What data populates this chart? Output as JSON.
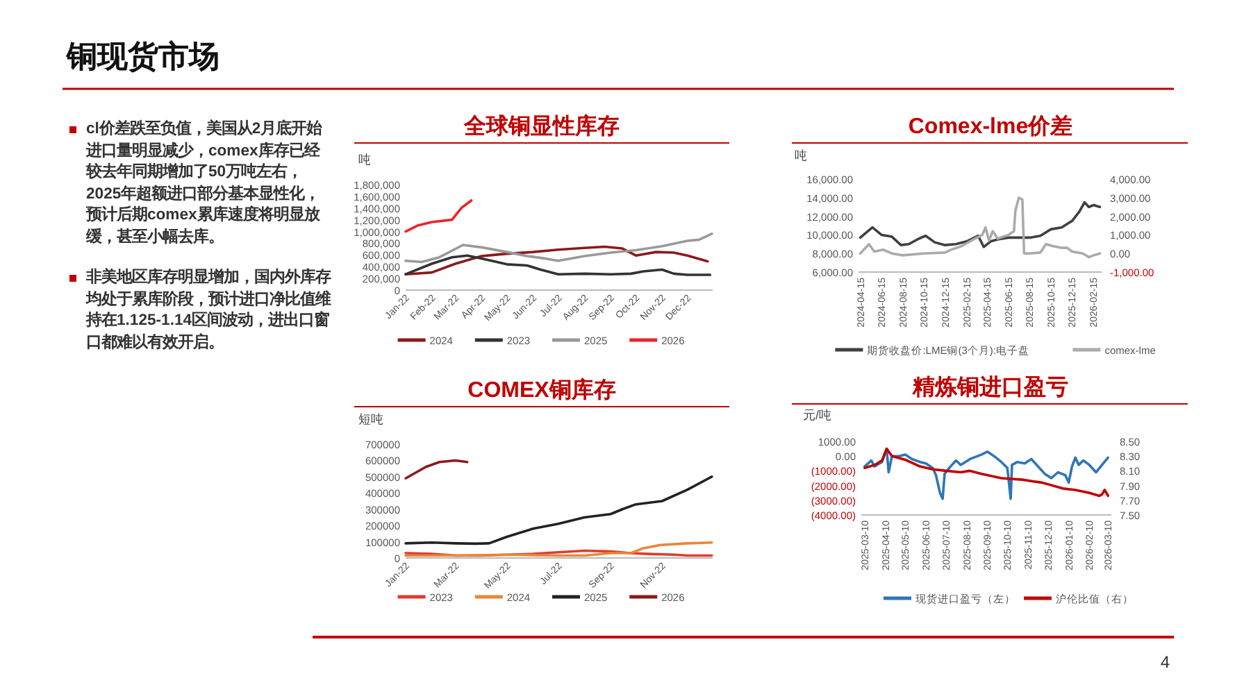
{
  "chart_data": [
    {
      "type": "other",
      "title": "铜现货市场",
      "annotations": [
        "cl价差跌至负值，美国从2月底开始进口量明显减少，comex库存已经较去年同期增加了50万吨左右，2025年超额进口部分基本显性化，预计后期comex累库速度将明显放缓，甚至小幅去库。",
        "非美地区库存明显增加，国内外库存均处于累库阶段，预计进口净比值维持在1.125-1.14区间波动，进出口窗口都难以有效开启。"
      ]
    },
    {
      "type": "line",
      "title": "全球铜显性库存",
      "ylabel": "吨",
      "legend": "bottom",
      "xlim": [
        "2022-01-01",
        "2022-12-31"
      ],
      "xticks": [
        {
          "value": "2022-01-01",
          "label": "Jan-22"
        },
        {
          "value": "2022-02-01",
          "label": "Feb-22"
        },
        {
          "value": "2022-03-01",
          "label": "Mar-22"
        },
        {
          "value": "2022-04-01",
          "label": "Apr-22"
        },
        {
          "value": "2022-05-01",
          "label": "May-22"
        },
        {
          "value": "2022-06-01",
          "label": "Jun-22"
        },
        {
          "value": "2022-07-01",
          "label": "Jul-22"
        },
        {
          "value": "2022-08-01",
          "label": "Aug-22"
        },
        {
          "value": "2022-09-01",
          "label": "Sep-22"
        },
        {
          "value": "2022-10-01",
          "label": "Oct-22"
        },
        {
          "value": "2022-11-01",
          "label": "Nov-22"
        },
        {
          "value": "2022-12-01",
          "label": "Dec-22"
        }
      ],
      "ylim": [
        0,
        1800000
      ],
      "yticks": [
        0,
        {
          "value": 200000,
          "label": "200,000"
        },
        {
          "value": 400000,
          "label": "400,000"
        },
        {
          "value": 600000,
          "label": "600,000"
        },
        {
          "value": 800000,
          "label": "800,000"
        },
        {
          "value": 1000000,
          "label": "1,000,000"
        },
        {
          "value": 1200000,
          "label": "1,200,000"
        },
        {
          "value": 1400000,
          "label": "1,400,000"
        },
        {
          "value": 1600000,
          "label": "1,600,000"
        },
        {
          "value": 1800000,
          "label": "1,800,000"
        }
      ],
      "series": [
        {
          "name": "2024",
          "color": "#8b1a1a",
          "x": [
            "2022-01-01",
            "2022-02-01",
            "2022-03-01",
            "2022-04-01",
            "2022-04-15",
            "2022-05-01",
            "2022-06-01",
            "2022-07-01",
            "2022-08-01",
            "2022-08-25",
            "2022-09-15",
            "2022-10-01",
            "2022-10-25",
            "2022-11-15",
            "2022-12-01",
            "2022-12-25"
          ],
          "values": [
            270000,
            300000,
            450000,
            580000,
            600000,
            620000,
            650000,
            690000,
            720000,
            740000,
            710000,
            590000,
            650000,
            640000,
            590000,
            490000
          ]
        },
        {
          "name": "2023",
          "color": "#333333",
          "x": [
            "2022-01-01",
            "2022-02-01",
            "2022-02-25",
            "2022-03-15",
            "2022-04-01",
            "2022-05-01",
            "2022-05-25",
            "2022-06-10",
            "2022-07-01",
            "2022-08-01",
            "2022-09-01",
            "2022-09-25",
            "2022-10-10",
            "2022-11-01",
            "2022-11-15",
            "2022-12-01",
            "2022-12-28"
          ],
          "values": [
            270000,
            450000,
            560000,
            590000,
            540000,
            440000,
            420000,
            350000,
            270000,
            280000,
            270000,
            280000,
            320000,
            350000,
            280000,
            260000,
            260000
          ]
        },
        {
          "name": "2025",
          "color": "#999999",
          "x": [
            "2022-01-01",
            "2022-01-20",
            "2022-02-10",
            "2022-03-10",
            "2022-04-01",
            "2022-05-01",
            "2022-05-25",
            "2022-06-15",
            "2022-07-01",
            "2022-08-01",
            "2022-09-01",
            "2022-10-01",
            "2022-11-01",
            "2022-12-01",
            "2022-12-15",
            "2022-12-30"
          ],
          "values": [
            500000,
            480000,
            560000,
            770000,
            730000,
            650000,
            580000,
            540000,
            500000,
            580000,
            640000,
            680000,
            750000,
            840000,
            860000,
            960000
          ]
        },
        {
          "name": "2026",
          "color": "#e8262a",
          "x": [
            "2022-01-01",
            "2022-01-15",
            "2022-02-01",
            "2022-02-25",
            "2022-03-08",
            "2022-03-20"
          ],
          "values": [
            1000000,
            1100000,
            1160000,
            1200000,
            1400000,
            1530000
          ]
        }
      ]
    },
    {
      "type": "line",
      "title": "Comex-lme价差",
      "ylabel": "吨",
      "legend": "bottom",
      "xlim": [
        "2024-04-10",
        "2026-03-10"
      ],
      "xticks": [
        "2024-04-15",
        "2024-06-15",
        "2024-08-15",
        "2024-10-15",
        "2024-12-15",
        "2025-02-15",
        "2025-04-15",
        "2025-06-15",
        "2025-08-15",
        "2025-10-15",
        "2025-12-15",
        "2026-02-15"
      ],
      "ylim": [
        6000,
        16000
      ],
      "yticks": [
        {
          "value": 6000,
          "label": "6,000.00"
        },
        {
          "value": 8000,
          "label": "8,000.00"
        },
        {
          "value": 10000,
          "label": "10,000.00"
        },
        {
          "value": 12000,
          "label": "12,000.00"
        },
        {
          "value": 14000,
          "label": "14,000.00"
        },
        {
          "value": 16000,
          "label": "16,000.00"
        }
      ],
      "y2lim": [
        -1000,
        4000
      ],
      "y2ticks": [
        {
          "value": -1000,
          "label": "-1,000.00"
        },
        {
          "value": 0,
          "label": "0.00"
        },
        {
          "value": 1000,
          "label": "1,000.00"
        },
        {
          "value": 2000,
          "label": "2,000.00"
        },
        {
          "value": 3000,
          "label": "3,000.00"
        },
        {
          "value": 4000,
          "label": "4,000.00"
        }
      ],
      "series": [
        {
          "name": "期货收盘价:LME铜(3个月):电子盘",
          "color": "#404040",
          "x": [
            "2024-04-15",
            "2024-05-20",
            "2024-06-15",
            "2024-07-15",
            "2024-08-10",
            "2024-09-01",
            "2024-10-01",
            "2024-10-20",
            "2024-11-15",
            "2024-12-15",
            "2025-01-15",
            "2025-02-15",
            "2025-03-20",
            "2025-04-05",
            "2025-04-25",
            "2025-05-15",
            "2025-06-15",
            "2025-07-15",
            "2025-08-15",
            "2025-09-15",
            "2025-10-15",
            "2025-11-15",
            "2025-12-15",
            "2026-01-05",
            "2026-01-20",
            "2026-02-01",
            "2026-02-15",
            "2026-03-05"
          ],
          "values": [
            9700,
            10800,
            10000,
            9800,
            8900,
            9000,
            9600,
            9900,
            9200,
            8900,
            9000,
            9300,
            9900,
            8700,
            9300,
            9500,
            9700,
            9700,
            9700,
            9900,
            10600,
            10800,
            11500,
            12500,
            13500,
            13000,
            13200,
            13000
          ]
        },
        {
          "name": "comex-lme",
          "color": "#aaaaaa",
          "axis": "y2",
          "x": [
            "2024-04-15",
            "2024-05-10",
            "2024-05-25",
            "2024-06-20",
            "2024-07-15",
            "2024-08-15",
            "2024-10-15",
            "2024-12-15",
            "2025-01-01",
            "2025-02-01",
            "2025-03-01",
            "2025-04-01",
            "2025-04-10",
            "2025-04-20",
            "2025-05-01",
            "2025-05-15",
            "2025-06-15",
            "2025-07-01",
            "2025-07-05",
            "2025-07-15",
            "2025-07-25",
            "2025-07-30",
            "2025-08-15",
            "2025-09-15",
            "2025-10-01",
            "2025-10-20",
            "2025-11-15",
            "2025-12-01",
            "2025-12-15",
            "2026-01-15",
            "2026-02-01",
            "2026-02-15",
            "2026-03-05"
          ],
          "values": [
            0,
            500,
            100,
            200,
            0,
            -100,
            0,
            50,
            200,
            400,
            700,
            1000,
            1400,
            700,
            1200,
            800,
            1000,
            1200,
            2300,
            3000,
            2900,
            0,
            0,
            50,
            500,
            400,
            300,
            300,
            100,
            0,
            -200,
            -100,
            0
          ]
        }
      ]
    },
    {
      "type": "line",
      "title": "COMEX铜库存",
      "ylabel": "短吨",
      "legend": "bottom",
      "xlim": [
        "2022-01-01",
        "2022-12-31"
      ],
      "xticks": [
        {
          "value": "2022-01-01",
          "label": "Jan-22"
        },
        {
          "value": "2022-03-01",
          "label": "Mar-22"
        },
        {
          "value": "2022-05-01",
          "label": "May-22"
        },
        {
          "value": "2022-07-01",
          "label": "Jul-22"
        },
        {
          "value": "2022-09-01",
          "label": "Sep-22"
        },
        {
          "value": "2022-11-01",
          "label": "Nov-22"
        }
      ],
      "ylim": [
        0,
        700000
      ],
      "yticks": [
        0,
        100000,
        200000,
        300000,
        400000,
        500000,
        600000,
        700000
      ],
      "series": [
        {
          "name": "2023",
          "color": "#e03c31",
          "x": [
            "2022-01-01",
            "2022-02-01",
            "2022-03-01",
            "2022-04-01",
            "2022-05-01",
            "2022-06-01",
            "2022-07-01",
            "2022-08-01",
            "2022-09-01",
            "2022-09-25",
            "2022-10-15",
            "2022-11-15",
            "2022-12-01",
            "2022-12-30"
          ],
          "values": [
            30000,
            25000,
            15000,
            15000,
            20000,
            25000,
            35000,
            45000,
            40000,
            30000,
            25000,
            20000,
            15000,
            15000
          ]
        },
        {
          "name": "2024",
          "color": "#e8873a",
          "x": [
            "2022-01-01",
            "2022-03-01",
            "2022-05-01",
            "2022-07-01",
            "2022-08-01",
            "2022-09-01",
            "2022-09-25",
            "2022-10-10",
            "2022-10-30",
            "2022-11-15",
            "2022-12-01",
            "2022-12-30"
          ],
          "values": [
            15000,
            15000,
            20000,
            15000,
            15000,
            30000,
            30000,
            60000,
            80000,
            85000,
            90000,
            95000
          ]
        },
        {
          "name": "2025",
          "color": "#222222",
          "x": [
            "2022-01-01",
            "2022-02-01",
            "2022-03-01",
            "2022-03-25",
            "2022-04-10",
            "2022-05-01",
            "2022-06-01",
            "2022-07-01",
            "2022-08-01",
            "2022-09-01",
            "2022-09-15",
            "2022-10-01",
            "2022-11-01",
            "2022-12-01",
            "2022-12-30"
          ],
          "values": [
            90000,
            95000,
            90000,
            88000,
            90000,
            130000,
            180000,
            210000,
            250000,
            270000,
            300000,
            330000,
            350000,
            420000,
            500000
          ]
        },
        {
          "name": "2026",
          "color": "#8b1a1a",
          "x": [
            "2022-01-01",
            "2022-01-25",
            "2022-02-10",
            "2022-03-01",
            "2022-03-15"
          ],
          "values": [
            490000,
            560000,
            590000,
            600000,
            590000
          ]
        }
      ]
    },
    {
      "type": "line",
      "title": "精炼铜进口盈亏",
      "ylabel": "元/吨",
      "legend": "bottom",
      "xlim": [
        "2025-03-05",
        "2026-03-15"
      ],
      "xticks": [
        "2025-03-10",
        "2025-04-10",
        "2025-05-10",
        "2025-06-10",
        "2025-07-10",
        "2025-08-10",
        "2025-09-10",
        "2025-10-10",
        "2025-11-10",
        "2025-12-10",
        "2026-01-10",
        "2026-02-10",
        "2026-03-10"
      ],
      "ylim": [
        -4000,
        1000
      ],
      "yticks": [
        {
          "value": -4000,
          "label": "(4000.00)"
        },
        {
          "value": -3000,
          "label": "(3000.00)"
        },
        {
          "value": -2000,
          "label": "(2000.00)"
        },
        {
          "value": -1000,
          "label": "(1000.00)"
        },
        {
          "value": 0,
          "label": "0.00"
        },
        {
          "value": 1000,
          "label": "1000.00"
        }
      ],
      "y2lim": [
        7.5,
        8.5
      ],
      "y2ticks": [
        {
          "value": 7.5,
          "label": "7.50"
        },
        {
          "value": 7.7,
          "label": "7.70"
        },
        {
          "value": 7.9,
          "label": "7.90"
        },
        {
          "value": 8.1,
          "label": "8.10"
        },
        {
          "value": 8.3,
          "label": "8.30"
        },
        {
          "value": 8.5,
          "label": "8.50"
        }
      ],
      "series": [
        {
          "name": "现货进口盈亏（左）",
          "color": "#2e75b6",
          "x": [
            "2025-03-10",
            "2025-03-20",
            "2025-03-25",
            "2025-04-05",
            "2025-04-12",
            "2025-04-15",
            "2025-04-20",
            "2025-05-01",
            "2025-05-10",
            "2025-05-20",
            "2025-06-01",
            "2025-06-10",
            "2025-06-20",
            "2025-06-25",
            "2025-07-01",
            "2025-07-05",
            "2025-07-08",
            "2025-07-15",
            "2025-07-25",
            "2025-08-01",
            "2025-08-15",
            "2025-09-01",
            "2025-09-10",
            "2025-09-20",
            "2025-10-01",
            "2025-10-10",
            "2025-10-15",
            "2025-10-17",
            "2025-10-25",
            "2025-11-05",
            "2025-11-15",
            "2025-11-25",
            "2025-12-05",
            "2025-12-15",
            "2025-12-25",
            "2026-01-05",
            "2026-01-10",
            "2026-01-15",
            "2026-01-20",
            "2026-01-25",
            "2026-02-01",
            "2026-02-10",
            "2026-02-20",
            "2026-03-01",
            "2026-03-10"
          ],
          "values": [
            -700,
            -300,
            -700,
            -400,
            500,
            -1100,
            0,
            0,
            100,
            -200,
            -400,
            -500,
            -800,
            -1300,
            -2500,
            -2900,
            -1200,
            -800,
            -300,
            -600,
            -200,
            100,
            300,
            0,
            -400,
            -800,
            -2900,
            -600,
            -400,
            -500,
            -200,
            -700,
            -1200,
            -1500,
            -1100,
            -1300,
            -1800,
            -700,
            -100,
            -600,
            -300,
            -600,
            -1100,
            -600,
            -100
          ]
        },
        {
          "name": "沪伦比值（右）",
          "color": "#c00000",
          "axis": "y2",
          "x": [
            "2025-03-10",
            "2025-03-25",
            "2025-04-05",
            "2025-04-12",
            "2025-04-20",
            "2025-05-10",
            "2025-06-01",
            "2025-06-20",
            "2025-07-10",
            "2025-08-01",
            "2025-08-15",
            "2025-09-01",
            "2025-10-01",
            "2025-11-01",
            "2025-11-15",
            "2025-12-01",
            "2026-01-01",
            "2026-01-20",
            "2026-02-10",
            "2026-02-25",
            "2026-03-01",
            "2026-03-05",
            "2026-03-10"
          ],
          "values": [
            8.14,
            8.18,
            8.24,
            8.4,
            8.3,
            8.25,
            8.16,
            8.12,
            8.1,
            8.08,
            8.1,
            8.06,
            8.0,
            7.98,
            7.96,
            7.94,
            7.86,
            7.84,
            7.8,
            7.76,
            7.78,
            7.84,
            7.76
          ]
        }
      ]
    },
    {
      "type": "other",
      "annotations": [
        "4"
      ]
    }
  ]
}
